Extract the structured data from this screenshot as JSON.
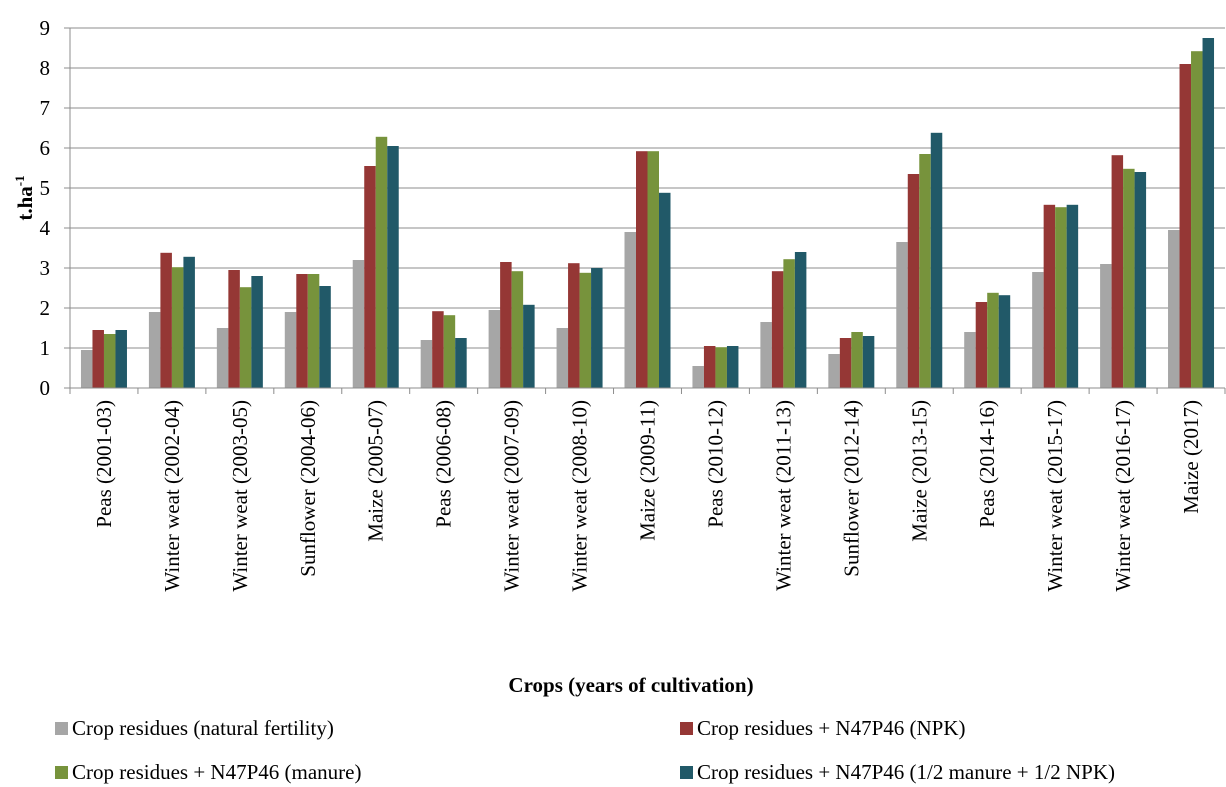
{
  "chart_data": {
    "type": "bar",
    "ylabel_base": "t.ha",
    "ylabel_sup": "-1",
    "xlabel": "Crops (years of cultivation)",
    "ylim": [
      0,
      9
    ],
    "yticks": [
      "0",
      "1",
      "2",
      "3",
      "4",
      "5",
      "6",
      "7",
      "8",
      "9"
    ],
    "grid": true,
    "legend_position": "bottom",
    "categories": [
      "Peas (2001-03)",
      "Winter weat (2002-04)",
      "Winter weat (2003-05)",
      "Sunflower (2004-06)",
      "Maize (2005-07)",
      "Peas (2006-08)",
      "Winter weat (2007-09)",
      "Winter weat (2008-10)",
      "Maize (2009-11)",
      "Peas (2010-12)",
      "Winter weat (2011-13)",
      "Sunflower (2012-14)",
      "Maize (2013-15)",
      "Peas (2014-16)",
      "Winter weat (2015-17)",
      "Winter weat (2016-17)",
      "Maize (2017)"
    ],
    "series": [
      {
        "name": "Crop residues (natural fertility)",
        "color": "#a6a6a6",
        "values": [
          0.95,
          1.9,
          1.5,
          1.9,
          3.2,
          1.2,
          1.95,
          1.5,
          3.9,
          0.55,
          1.65,
          0.85,
          3.65,
          1.4,
          2.9,
          3.1,
          3.95
        ]
      },
      {
        "name": "Crop residues + N47P46 (NPK)",
        "color": "#953735",
        "values": [
          1.45,
          3.38,
          2.95,
          2.85,
          5.55,
          1.92,
          3.15,
          3.12,
          5.92,
          1.05,
          2.92,
          1.25,
          5.35,
          2.15,
          4.58,
          5.82,
          8.1
        ]
      },
      {
        "name": "Crop residues + N47P46 (manure)",
        "color": "#77933c",
        "values": [
          1.35,
          3.02,
          2.52,
          2.85,
          6.28,
          1.82,
          2.92,
          2.88,
          5.92,
          1.02,
          3.22,
          1.4,
          5.85,
          2.38,
          4.52,
          5.48,
          8.42
        ]
      },
      {
        "name": "Crop residues + N47P46 (1/2 manure + 1/2 NPK)",
        "color": "#215968",
        "values": [
          1.45,
          3.28,
          2.8,
          2.55,
          6.05,
          1.25,
          2.08,
          3.0,
          4.88,
          1.05,
          3.4,
          1.3,
          6.38,
          2.32,
          4.58,
          5.4,
          8.75
        ]
      }
    ]
  }
}
